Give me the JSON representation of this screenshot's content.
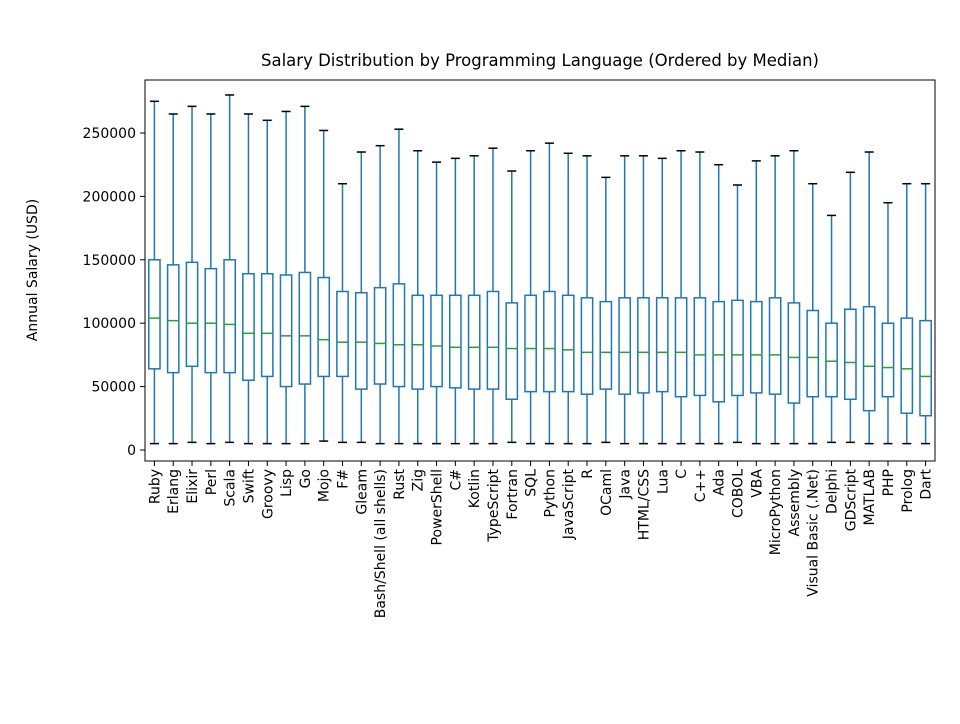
{
  "chart_data": {
    "type": "box",
    "title": "Salary Distribution by Programming Language (Ordered by Median)",
    "xlabel": "",
    "ylabel": "Annual Salary (USD)",
    "ylim": [
      -8700,
      291800
    ],
    "yticks": [
      0,
      50000,
      100000,
      150000,
      200000,
      250000
    ],
    "grid": false,
    "colors": {
      "box": "#1f77b4",
      "median": "#2ca02c",
      "cap": "#000000"
    },
    "categories": [
      "Ruby",
      "Erlang",
      "Elixir",
      "Perl",
      "Scala",
      "Swift",
      "Groovy",
      "Lisp",
      "Go",
      "Mojo",
      "F#",
      "Gleam",
      "Bash/Shell (all shells)",
      "Rust",
      "Zig",
      "PowerShell",
      "C#",
      "Kotlin",
      "TypeScript",
      "Fortran",
      "SQL",
      "Python",
      "JavaScript",
      "R",
      "OCaml",
      "Java",
      "HTML/CSS",
      "Lua",
      "C",
      "C++",
      "Ada",
      "COBOL",
      "VBA",
      "MicroPython",
      "Assembly",
      "Visual Basic (.Net)",
      "Delphi",
      "GDScript",
      "MATLAB",
      "PHP",
      "Prolog",
      "Dart"
    ],
    "boxes": [
      [
        5000,
        64000,
        104000,
        150000,
        275000
      ],
      [
        5000,
        61000,
        102000,
        146000,
        265000
      ],
      [
        6000,
        66000,
        100000,
        148000,
        271000
      ],
      [
        5000,
        61000,
        100000,
        143000,
        265000
      ],
      [
        6000,
        61000,
        99000,
        150000,
        280000
      ],
      [
        5000,
        55000,
        92000,
        139000,
        265000
      ],
      [
        5000,
        58000,
        92000,
        139000,
        260000
      ],
      [
        5000,
        50000,
        90000,
        138000,
        267000
      ],
      [
        5000,
        52000,
        90000,
        140000,
        271000
      ],
      [
        7000,
        58000,
        87000,
        136000,
        252000
      ],
      [
        6000,
        58000,
        85000,
        125000,
        210000
      ],
      [
        6000,
        48000,
        85000,
        124000,
        235000
      ],
      [
        5000,
        52000,
        84000,
        128000,
        240000
      ],
      [
        5000,
        50000,
        83000,
        131000,
        253000
      ],
      [
        5000,
        48000,
        83000,
        122000,
        236000
      ],
      [
        5000,
        50000,
        82000,
        122000,
        227000
      ],
      [
        5000,
        49000,
        81000,
        122000,
        230000
      ],
      [
        5000,
        48000,
        81000,
        122000,
        232000
      ],
      [
        5000,
        48000,
        81000,
        125000,
        238000
      ],
      [
        6000,
        40000,
        80000,
        116000,
        220000
      ],
      [
        5000,
        46000,
        80000,
        122000,
        236000
      ],
      [
        5000,
        46000,
        80000,
        125000,
        242000
      ],
      [
        5000,
        46000,
        79000,
        122000,
        234000
      ],
      [
        5000,
        44000,
        77000,
        120000,
        232000
      ],
      [
        6000,
        48000,
        77000,
        117000,
        215000
      ],
      [
        5000,
        44000,
        77000,
        120000,
        232000
      ],
      [
        5000,
        45000,
        77000,
        120000,
        232000
      ],
      [
        5000,
        46000,
        77000,
        120000,
        230000
      ],
      [
        5000,
        42000,
        77000,
        120000,
        236000
      ],
      [
        5000,
        43000,
        75000,
        120000,
        235000
      ],
      [
        5000,
        38000,
        75000,
        117000,
        225000
      ],
      [
        6000,
        43000,
        75000,
        118000,
        209000
      ],
      [
        5000,
        45000,
        75000,
        117000,
        228000
      ],
      [
        5000,
        44000,
        75000,
        120000,
        232000
      ],
      [
        5000,
        37000,
        73000,
        116000,
        236000
      ],
      [
        5000,
        42000,
        73000,
        110000,
        210000
      ],
      [
        6000,
        42000,
        70000,
        100000,
        185000
      ],
      [
        6000,
        40000,
        69000,
        111000,
        219000
      ],
      [
        5000,
        31000,
        66000,
        113000,
        235000
      ],
      [
        5000,
        42000,
        65000,
        100000,
        195000
      ],
      [
        5000,
        29000,
        64000,
        104000,
        210000
      ],
      [
        5000,
        27000,
        58000,
        102000,
        210000
      ]
    ],
    "box_fields": [
      "whisker_low",
      "q1",
      "median",
      "q3",
      "whisker_high"
    ]
  }
}
